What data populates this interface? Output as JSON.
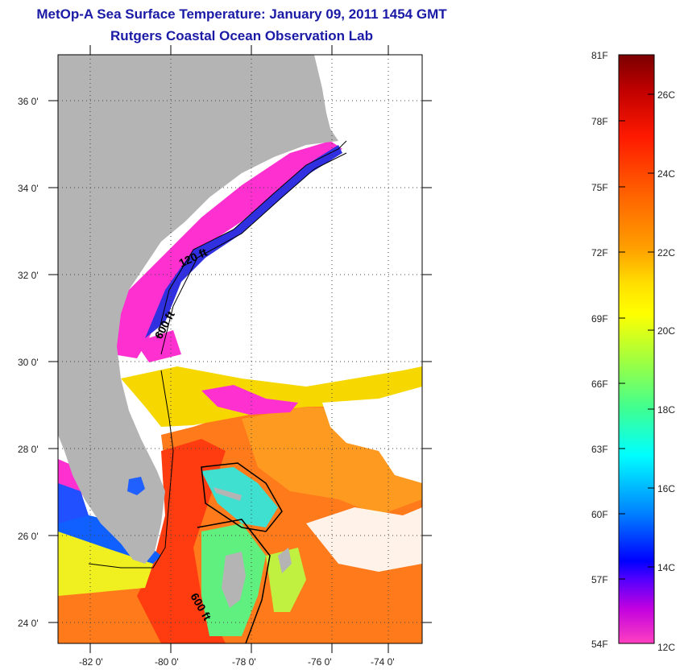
{
  "title": {
    "line1": "MetOp-A Sea Surface Temperature:  January 09, 2011 1454 GMT",
    "line2": "Rutgers Coastal Ocean Observation Lab"
  },
  "map": {
    "lat_labels": [
      "36 0'",
      "34 0'",
      "32 0'",
      "30 0'",
      "28 0'",
      "26 0'",
      "24 0'"
    ],
    "lon_labels": [
      "-82 0'",
      "-80 0'",
      "-78 0'",
      "-76 0'",
      "-74 0'"
    ],
    "contour_labels": [
      "120 ft",
      "600 ft",
      "600 ft"
    ],
    "land_color": "#b4b4b4",
    "cloud_color": "#ffffff"
  },
  "colorbar": {
    "fahrenheit": [
      "81F",
      "78F",
      "75F",
      "72F",
      "69F",
      "66F",
      "63F",
      "60F",
      "57F",
      "54F"
    ],
    "celsius": [
      "26C",
      "24C",
      "22C",
      "20C",
      "18C",
      "16C",
      "14C",
      "12C"
    ],
    "colors": [
      "#7a0000",
      "#e00000",
      "#ff3a00",
      "#ff8c00",
      "#ffd000",
      "#ffff00",
      "#a0ff40",
      "#40ff90",
      "#00ffff",
      "#0080ff",
      "#0000ff",
      "#8000ff",
      "#ff00c8",
      "#ff40c0"
    ]
  }
}
